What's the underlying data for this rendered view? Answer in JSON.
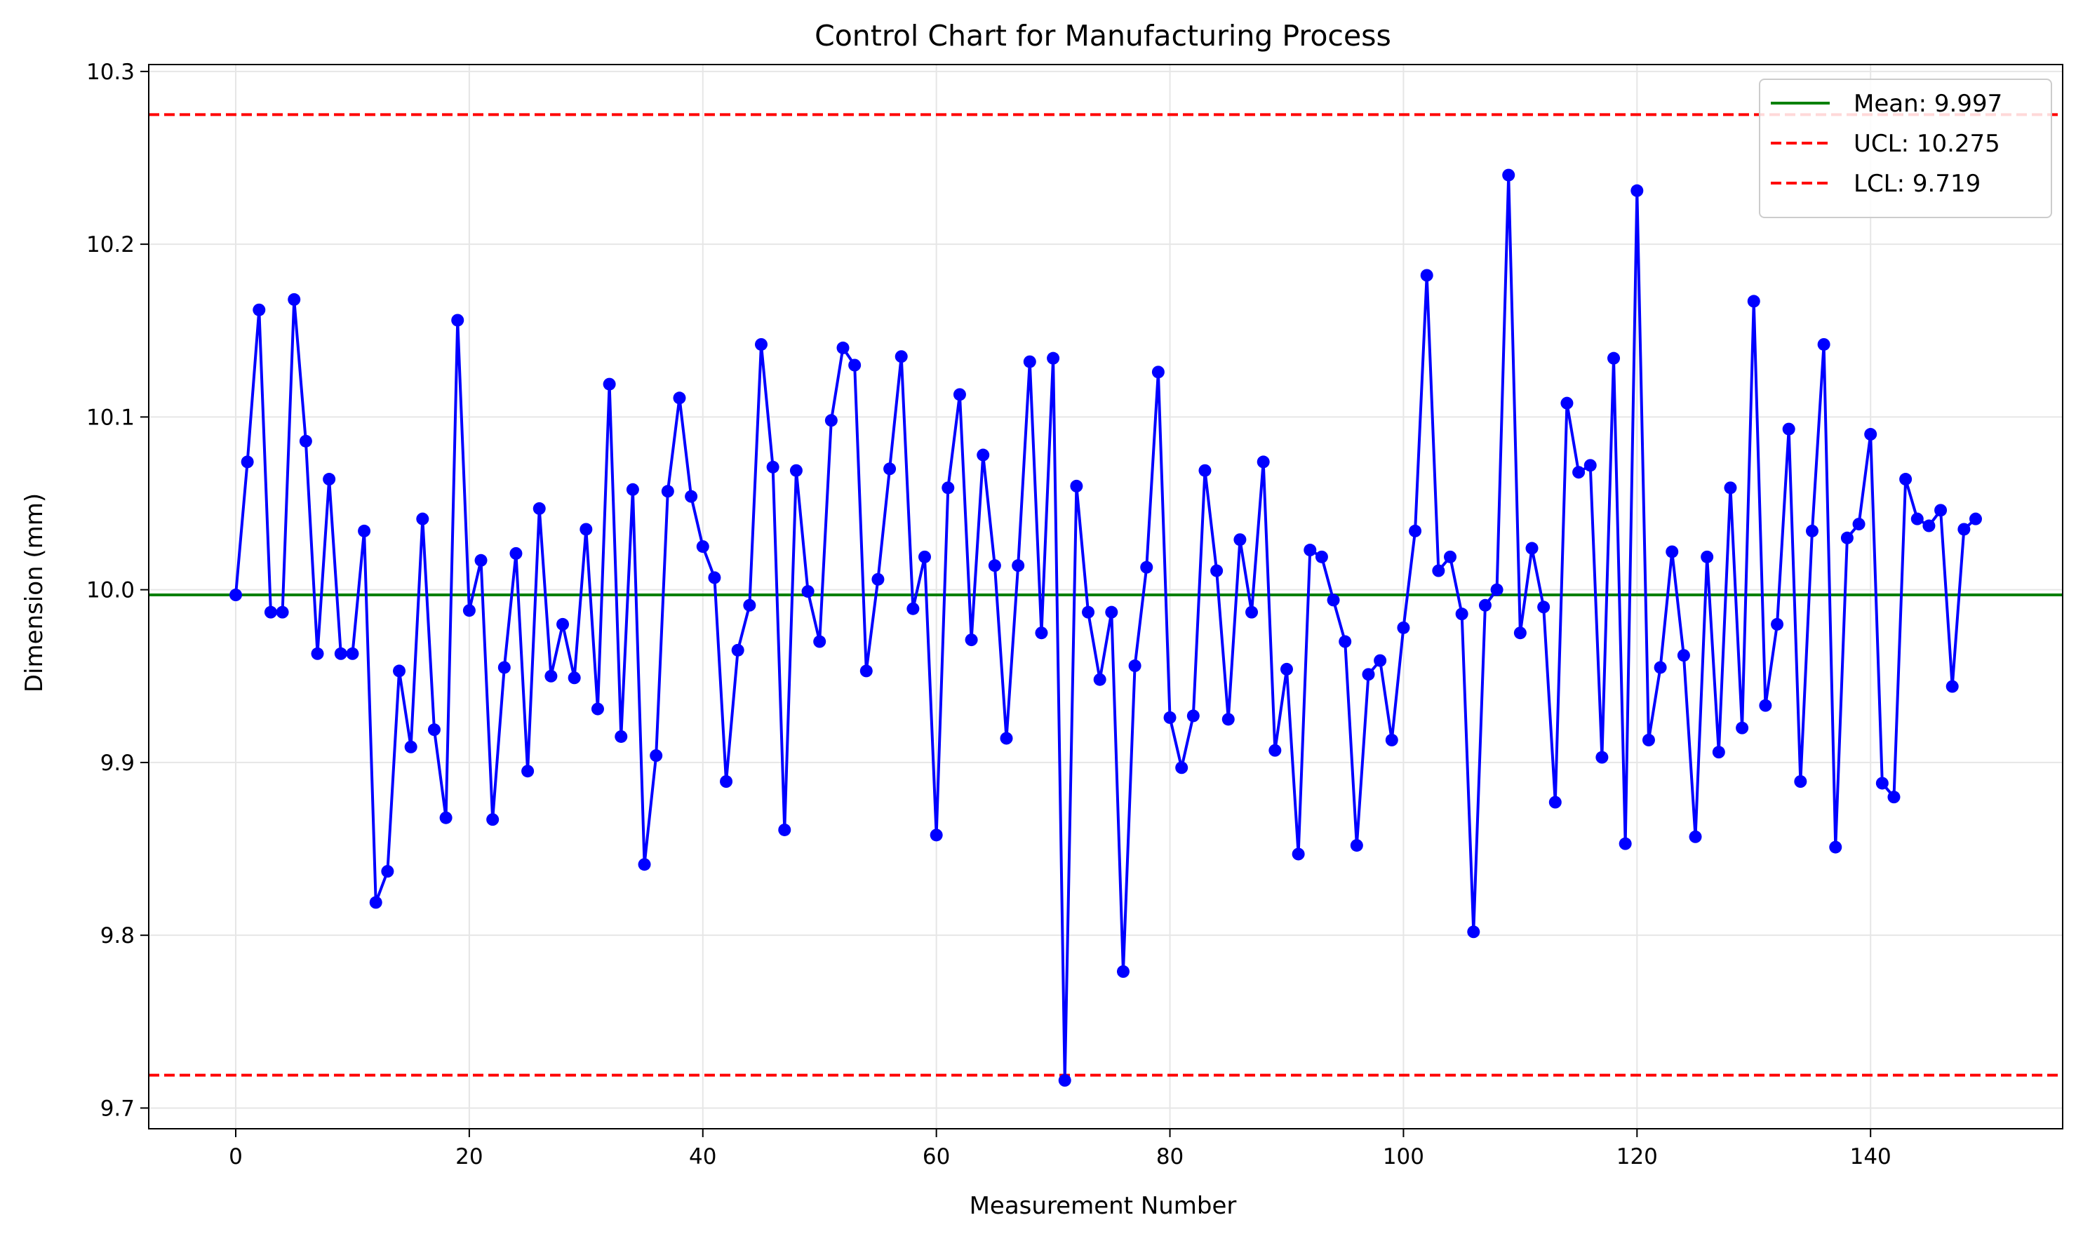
{
  "chart_data": {
    "type": "line",
    "title": "Control Chart for Manufacturing Process",
    "xlabel": "Measurement Number",
    "ylabel": "Dimension (mm)",
    "xlim": [
      -7.45,
      156.45
    ],
    "ylim": [
      9.688,
      10.304
    ],
    "xticks": [
      0,
      20,
      40,
      60,
      80,
      100,
      120,
      140
    ],
    "xtick_labels": [
      "0",
      "20",
      "40",
      "60",
      "80",
      "100",
      "120",
      "140"
    ],
    "yticks": [
      9.7,
      9.8,
      9.9,
      10.0,
      10.1,
      10.2,
      10.3
    ],
    "ytick_labels": [
      "9.7",
      "9.8",
      "9.9",
      "10.0",
      "10.1",
      "10.2",
      "10.3"
    ],
    "grid": true,
    "legend_position": "top-right",
    "series": [
      {
        "color": "#0000ff",
        "marker": "circle",
        "values": [
          9.997,
          10.074,
          10.162,
          9.987,
          9.987,
          10.168,
          10.086,
          9.963,
          10.064,
          9.963,
          9.963,
          10.034,
          9.819,
          9.837,
          9.953,
          9.909,
          10.041,
          9.919,
          9.868,
          10.156,
          9.988,
          10.017,
          9.867,
          9.955,
          10.021,
          9.895,
          10.047,
          9.95,
          9.98,
          9.949,
          10.035,
          9.931,
          10.119,
          9.915,
          10.058,
          9.841,
          9.904,
          10.057,
          10.111,
          10.054,
          10.025,
          10.007,
          9.889,
          9.965,
          9.991,
          10.142,
          10.071,
          9.861,
          10.069,
          9.999,
          9.97,
          10.098,
          10.14,
          10.13,
          9.953,
          10.006,
          10.07,
          10.135,
          9.989,
          10.019,
          9.858,
          10.059,
          10.113,
          9.971,
          10.078,
          10.014,
          9.914,
          10.014,
          10.132,
          9.975,
          10.134,
          9.716,
          10.06,
          9.987,
          9.948,
          9.987,
          9.779,
          9.956,
          10.013,
          10.126,
          9.926,
          9.897,
          9.927,
          10.069,
          10.011,
          9.925,
          10.029,
          9.987,
          10.074,
          9.907,
          9.954,
          9.847,
          10.023,
          10.019,
          9.994,
          9.97,
          9.852,
          9.951,
          9.959,
          9.913,
          9.978,
          10.034,
          10.182,
          10.011,
          10.019,
          9.986,
          9.802,
          9.991,
          10.0,
          10.24,
          9.975,
          10.024,
          9.99,
          9.877,
          10.108,
          10.068,
          10.072,
          9.903,
          10.134,
          9.853,
          10.231,
          9.913,
          9.955,
          10.022,
          9.962,
          9.857,
          10.019,
          9.906,
          10.059,
          9.92,
          10.167,
          9.933,
          9.98,
          10.093,
          9.889,
          10.034,
          10.142,
          9.851,
          10.03,
          10.038,
          10.09,
          9.888,
          9.88,
          10.064,
          10.041,
          10.037,
          10.046,
          9.944,
          10.035,
          10.041
        ]
      }
    ],
    "reference_lines": [
      {
        "name": "Mean: 9.997",
        "value": 9.997,
        "color": "#008000",
        "style": "solid"
      },
      {
        "name": "UCL: 10.275",
        "value": 10.275,
        "color": "#ff0000",
        "style": "dashed"
      },
      {
        "name": "LCL: 9.719",
        "value": 9.719,
        "color": "#ff0000",
        "style": "dashed"
      }
    ]
  }
}
